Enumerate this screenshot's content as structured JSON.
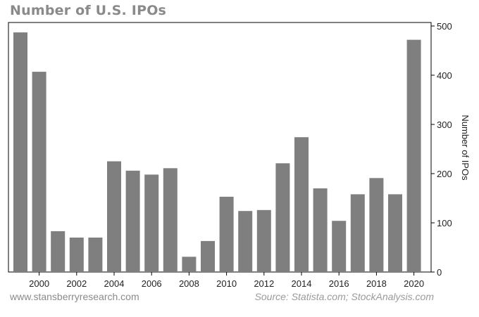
{
  "header": {
    "title": "Number of U.S. IPOs"
  },
  "footer": {
    "website": "www.stansberryresearch.com",
    "source": "Source: Statista.com; StockAnalysis.com"
  },
  "colors": {
    "bar": "#7f7f7f",
    "axis": "#000000",
    "title": "#8a8a8a"
  },
  "chart_data": {
    "type": "bar",
    "title": "Number of U.S. IPOs",
    "ylabel": "Number of IPOs",
    "xlabel": "",
    "y_axis_position": "right",
    "grid": false,
    "legend": "none",
    "ylim": [
      0,
      500
    ],
    "yticks": [
      0,
      100,
      200,
      300,
      400,
      500
    ],
    "xticks": [
      2000,
      2002,
      2004,
      2006,
      2008,
      2010,
      2012,
      2014,
      2016,
      2018,
      2020
    ],
    "x": [
      1999,
      2000,
      2001,
      2002,
      2003,
      2004,
      2005,
      2006,
      2007,
      2008,
      2009,
      2010,
      2011,
      2012,
      2013,
      2014,
      2015,
      2016,
      2017,
      2018,
      2019,
      2020
    ],
    "values": [
      487,
      407,
      83,
      70,
      70,
      225,
      206,
      198,
      211,
      31,
      63,
      153,
      124,
      126,
      221,
      274,
      170,
      104,
      158,
      191,
      158,
      472
    ]
  }
}
